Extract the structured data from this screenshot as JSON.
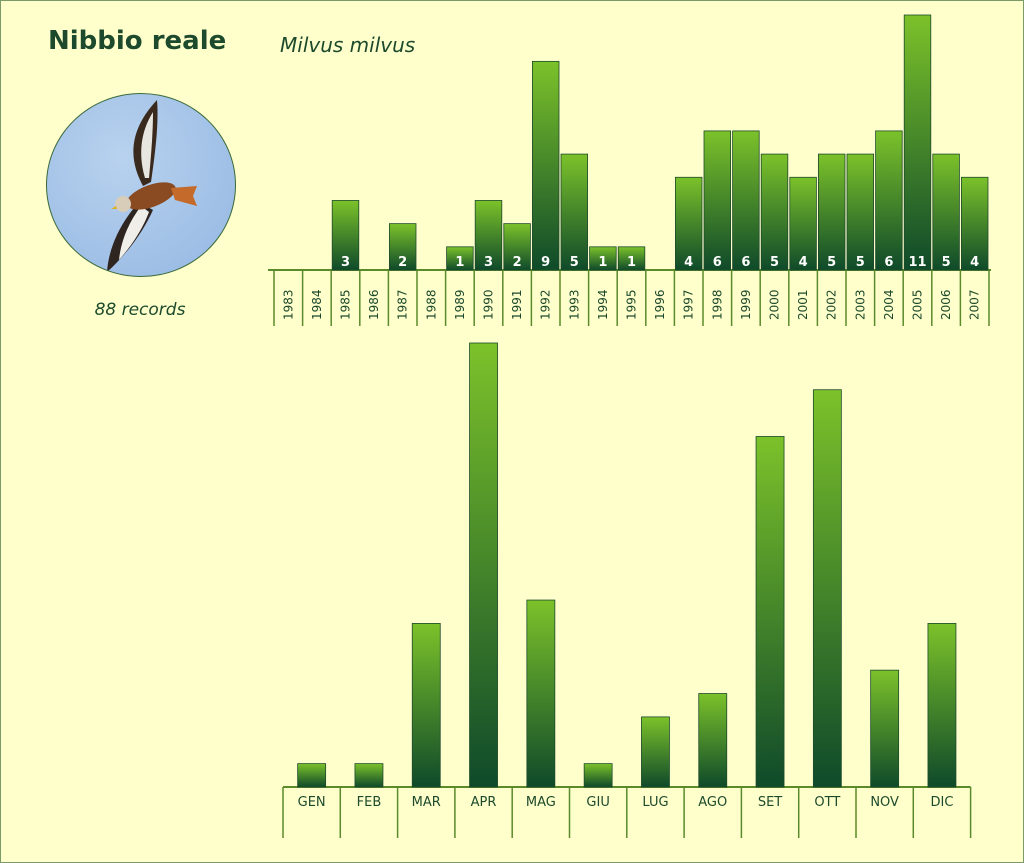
{
  "header": {
    "title": "Nibbio reale",
    "subtitle": "Milvus milvus",
    "records_label": "88 records"
  },
  "photo": {
    "icon": "red-kite-bird-photo"
  },
  "colors": {
    "background": "#ffffcc",
    "bar_top": "#7cc22a",
    "bar_bottom": "#0f4a2a",
    "text": "#1d4a2c",
    "axis": "#5a8a2a"
  },
  "chart_data": [
    {
      "type": "bar",
      "categories": [
        "1983",
        "1984",
        "1985",
        "1986",
        "1987",
        "1988",
        "1989",
        "1990",
        "1991",
        "1992",
        "1993",
        "1994",
        "1995",
        "1996",
        "1997",
        "1998",
        "1999",
        "2000",
        "2001",
        "2002",
        "2003",
        "2004",
        "2005",
        "2006",
        "2007"
      ],
      "values": [
        0,
        0,
        3,
        0,
        2,
        0,
        1,
        3,
        2,
        9,
        5,
        1,
        1,
        0,
        4,
        6,
        6,
        5,
        4,
        5,
        5,
        6,
        11,
        5,
        4
      ],
      "data_labels": true,
      "ylim": [
        0,
        11
      ]
    },
    {
      "type": "bar",
      "categories": [
        "GEN",
        "FEB",
        "MAR",
        "APR",
        "MAG",
        "GIU",
        "LUG",
        "AGO",
        "SET",
        "OTT",
        "NOV",
        "DIC"
      ],
      "values": [
        1,
        1,
        7,
        19,
        8,
        1,
        3,
        4,
        15,
        17,
        5,
        7
      ],
      "data_labels": false,
      "ylim": [
        0,
        19
      ]
    }
  ]
}
